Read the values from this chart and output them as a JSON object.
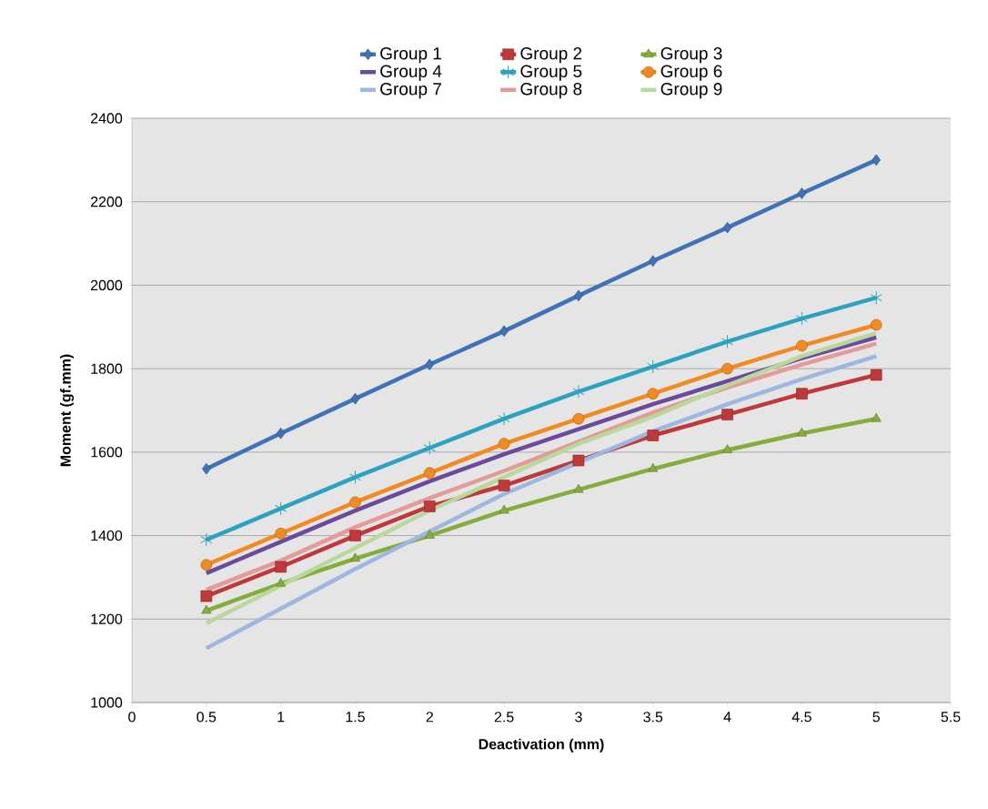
{
  "chart_data": {
    "type": "line",
    "xlabel": "Deactivation (mm)",
    "ylabel": "Moment (gf.mm)",
    "x": [
      0.5,
      1,
      1.5,
      2,
      2.5,
      3,
      3.5,
      4,
      4.5,
      5
    ],
    "xlim": [
      0,
      5.5
    ],
    "xticks": [
      0,
      0.5,
      1,
      1.5,
      2,
      2.5,
      3,
      3.5,
      4,
      4.5,
      5,
      5.5
    ],
    "ylim": [
      1000,
      2400
    ],
    "yticks": [
      1000,
      1200,
      1400,
      1600,
      1800,
      2000,
      2200,
      2400
    ],
    "grid": "y",
    "legend": "top",
    "line_style": "solid",
    "series": [
      {
        "name": "Group 1",
        "color": "#3f72b8",
        "marker": "diamond",
        "values": [
          1560,
          1645,
          1728,
          1810,
          1890,
          1975,
          2058,
          2138,
          2220,
          2300
        ]
      },
      {
        "name": "Group 2",
        "color": "#c0393a",
        "marker": "square",
        "values": [
          1255,
          1325,
          1400,
          1470,
          1520,
          1580,
          1640,
          1690,
          1740,
          1785
        ]
      },
      {
        "name": "Group 3",
        "color": "#84ad3c",
        "marker": "triangle",
        "values": [
          1220,
          1285,
          1345,
          1400,
          1460,
          1510,
          1560,
          1605,
          1645,
          1680
        ]
      },
      {
        "name": "Group 4",
        "color": "#6a4a9c",
        "marker": "none",
        "values": [
          1310,
          1385,
          1460,
          1530,
          1595,
          1655,
          1715,
          1770,
          1825,
          1875
        ]
      },
      {
        "name": "Group 5",
        "color": "#2aa2c0",
        "marker": "cross",
        "values": [
          1390,
          1465,
          1540,
          1610,
          1680,
          1745,
          1805,
          1865,
          1920,
          1970
        ]
      },
      {
        "name": "Group 6",
        "color": "#f28a22",
        "marker": "circle",
        "values": [
          1330,
          1405,
          1480,
          1550,
          1620,
          1680,
          1740,
          1800,
          1855,
          1905
        ]
      },
      {
        "name": "Group 7",
        "color": "#9db7e0",
        "marker": "none",
        "values": [
          1130,
          1225,
          1320,
          1410,
          1500,
          1575,
          1650,
          1715,
          1775,
          1830
        ]
      },
      {
        "name": "Group 8",
        "color": "#e49a98",
        "marker": "none",
        "values": [
          1270,
          1340,
          1420,
          1490,
          1555,
          1625,
          1695,
          1755,
          1810,
          1860
        ]
      },
      {
        "name": "Group 9",
        "color": "#b8d99a",
        "marker": "none",
        "values": [
          1190,
          1280,
          1370,
          1460,
          1540,
          1620,
          1685,
          1760,
          1830,
          1885
        ]
      }
    ]
  }
}
